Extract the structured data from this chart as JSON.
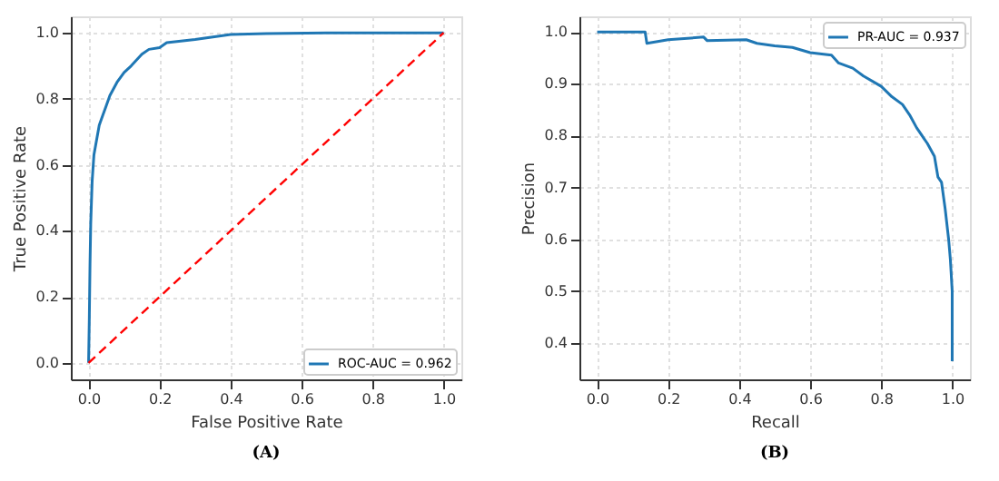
{
  "chart_data": [
    {
      "type": "line",
      "title": "(A)",
      "xlabel": "False Positive Rate",
      "ylabel": "True Positive Rate",
      "xlim": [
        -0.05,
        1.05
      ],
      "ylim": [
        -0.05,
        1.05
      ],
      "xticks": [
        {
          "value": 0,
          "label": "0.0"
        },
        {
          "value": 0.2,
          "label": "0.2"
        },
        {
          "value": 0.4,
          "label": "0.4"
        },
        {
          "value": 0.6,
          "label": "0.6"
        },
        {
          "value": 0.8,
          "label": "0.8"
        },
        {
          "value": 1,
          "label": "1.0"
        }
      ],
      "yticks": [
        {
          "value": 0,
          "label": "0.0"
        },
        {
          "value": 0.2,
          "label": "0.2"
        },
        {
          "value": 0.4,
          "label": "0.4"
        },
        {
          "value": 0.6,
          "label": "0.6"
        },
        {
          "value": 0.8,
          "label": "0.8"
        },
        {
          "value": 1,
          "label": "1.0"
        }
      ],
      "grid": true,
      "legend": "bottom right",
      "series": [
        {
          "name": "ROC-AUC = 0.962",
          "color": "#1f77b4",
          "line_style": "solid",
          "x": [
            0,
            0.002,
            0.004,
            0.006,
            0.01,
            0.015,
            0.02,
            0.03,
            0.04,
            0.05,
            0.06,
            0.08,
            0.1,
            0.12,
            0.15,
            0.17,
            0.2,
            0.22,
            0.3,
            0.4,
            0.5,
            0.67,
            1.0
          ],
          "values": [
            0,
            0.13,
            0.3,
            0.42,
            0.55,
            0.63,
            0.66,
            0.72,
            0.75,
            0.78,
            0.81,
            0.85,
            0.88,
            0.9,
            0.935,
            0.95,
            0.955,
            0.97,
            0.98,
            0.995,
            0.998,
            1.0,
            1.0
          ]
        },
        {
          "color": "#ff0000",
          "line_style": "dashed",
          "x": [
            0,
            1
          ],
          "values": [
            0,
            1
          ]
        }
      ]
    },
    {
      "type": "line",
      "title": "(B)",
      "xlabel": "Recall",
      "ylabel": "Precision",
      "xlim": [
        -0.05,
        1.05
      ],
      "ylim": [
        0.33,
        1.03
      ],
      "xticks": [
        {
          "value": 0,
          "label": "0.0"
        },
        {
          "value": 0.2,
          "label": "0.2"
        },
        {
          "value": 0.4,
          "label": "0.4"
        },
        {
          "value": 0.6,
          "label": "0.6"
        },
        {
          "value": 0.8,
          "label": "0.8"
        },
        {
          "value": 1,
          "label": "1.0"
        }
      ],
      "yticks": [
        0.4,
        0.5,
        0.6,
        0.7,
        0.8,
        0.9,
        {
          "value": 1,
          "label": "1.0"
        }
      ],
      "grid": true,
      "legend": "top right",
      "series": [
        {
          "name": "PR-AUC = 0.937",
          "color": "#1f77b4",
          "line_style": "solid",
          "x": [
            0,
            0.135,
            0.14,
            0.2,
            0.3,
            0.31,
            0.42,
            0.45,
            0.5,
            0.55,
            0.6,
            0.66,
            0.68,
            0.72,
            0.75,
            0.8,
            0.83,
            0.86,
            0.88,
            0.9,
            0.93,
            0.95,
            0.96,
            0.97,
            0.98,
            0.99,
            0.995,
            1.0,
            1.0
          ],
          "values": [
            1.0,
            1.0,
            0.978,
            0.985,
            0.99,
            0.983,
            0.985,
            0.978,
            0.973,
            0.97,
            0.96,
            0.955,
            0.94,
            0.93,
            0.915,
            0.895,
            0.875,
            0.86,
            0.84,
            0.815,
            0.785,
            0.76,
            0.72,
            0.71,
            0.66,
            0.6,
            0.56,
            0.5,
            0.365
          ]
        }
      ]
    }
  ]
}
